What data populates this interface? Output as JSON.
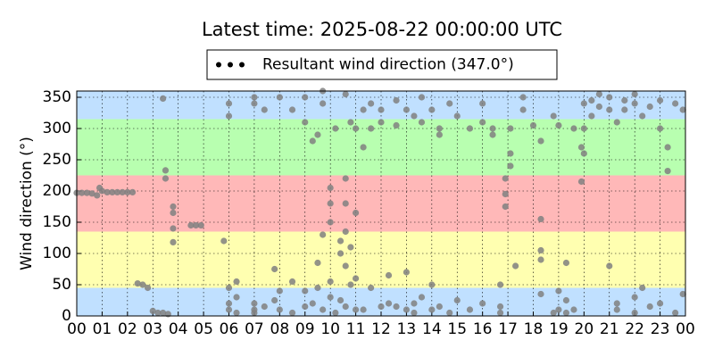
{
  "chart_data": {
    "type": "scatter",
    "title": "Latest time: 2025-08-22 00:00:00 UTC",
    "ylabel": "Wind direction (°)",
    "legend": "upper center",
    "grid": true,
    "xlim": [
      0,
      24
    ],
    "ylim": [
      0,
      360
    ],
    "yticks": [
      0,
      50,
      100,
      150,
      200,
      250,
      300,
      350
    ],
    "xticks": [
      {
        "value": 0,
        "label": "00"
      },
      {
        "value": 1,
        "label": "01"
      },
      {
        "value": 2,
        "label": "02"
      },
      {
        "value": 3,
        "label": "03"
      },
      {
        "value": 4,
        "label": "04"
      },
      {
        "value": 5,
        "label": "05"
      },
      {
        "value": 6,
        "label": "06"
      },
      {
        "value": 7,
        "label": "07"
      },
      {
        "value": 8,
        "label": "08"
      },
      {
        "value": 9,
        "label": "09"
      },
      {
        "value": 10,
        "label": "10"
      },
      {
        "value": 11,
        "label": "11"
      },
      {
        "value": 12,
        "label": "12"
      },
      {
        "value": 13,
        "label": "13"
      },
      {
        "value": 14,
        "label": "14"
      },
      {
        "value": 15,
        "label": "15"
      },
      {
        "value": 16,
        "label": "16"
      },
      {
        "value": 17,
        "label": "17"
      },
      {
        "value": 18,
        "label": "18"
      },
      {
        "value": 19,
        "label": "19"
      },
      {
        "value": 20,
        "label": "20"
      },
      {
        "value": 21,
        "label": "21"
      },
      {
        "value": 22,
        "label": "22"
      },
      {
        "value": 23,
        "label": "23"
      },
      {
        "value": 24,
        "label": "00"
      }
    ],
    "bands": [
      {
        "from": 0,
        "to": 45,
        "color": "#c0e0ff"
      },
      {
        "from": 45,
        "to": 135,
        "color": "#ffffb0"
      },
      {
        "from": 135,
        "to": 225,
        "color": "#ffb8b8"
      },
      {
        "from": 225,
        "to": 315,
        "color": "#b8ffb0"
      },
      {
        "from": 315,
        "to": 360,
        "color": "#c0e0ff"
      }
    ],
    "series": [
      {
        "name": "Resultant wind direction (347.0°)",
        "color": "#808080",
        "x": [
          0,
          0.2,
          0.4,
          0.6,
          0.8,
          0.9,
          1.0,
          1.2,
          1.4,
          1.6,
          1.8,
          2.0,
          2.2,
          2.4,
          2.6,
          2.8,
          3.0,
          3.2,
          3.4,
          3.6,
          3.4,
          3.5,
          3.5,
          3.8,
          3.8,
          3.8,
          3.8,
          4.5,
          4.7,
          4.9,
          5.8,
          6,
          6,
          6,
          6,
          6,
          6.3,
          6.3,
          6.3,
          7,
          7,
          7,
          7,
          7,
          7.4,
          7.4,
          7.8,
          7.8,
          8,
          8,
          8,
          8.5,
          8.5,
          8.5,
          9,
          9,
          9,
          9,
          9.3,
          9.3,
          9.5,
          9.5,
          9.5,
          9.7,
          9.7,
          9.7,
          9.7,
          10,
          10,
          10,
          10,
          10,
          10.2,
          10.2,
          10.4,
          10.4,
          10.4,
          10.6,
          10.6,
          10.6,
          10.6,
          10.6,
          10.6,
          10.8,
          10.8,
          10.8,
          11,
          11,
          11,
          11,
          11.3,
          11.3,
          11.3,
          11.6,
          11.6,
          11.6,
          12,
          12,
          12,
          12.3,
          12.3,
          12.6,
          12.6,
          12.6,
          13,
          13,
          13,
          13.3,
          13.3,
          13.3,
          13.6,
          13.6,
          13.6,
          14,
          14,
          14,
          14.3,
          14.3,
          14.3,
          14.7,
          14.7,
          15,
          15,
          15.5,
          15.5,
          16,
          16,
          16,
          16.4,
          16.4,
          16.7,
          16.7,
          16.7,
          16.9,
          16.9,
          16.9,
          17.1,
          17.1,
          17.1,
          17.3,
          17.6,
          17.6,
          18,
          18.3,
          18.3,
          18.3,
          18.3,
          18.3,
          18.8,
          18.8,
          19,
          19,
          19,
          19.3,
          19.3,
          19.3,
          19.6,
          19.6,
          19.9,
          19.9,
          20,
          20,
          20,
          20.3,
          20.3,
          20.6,
          20.6,
          21,
          21,
          21,
          21.3,
          21.3,
          21.3,
          21.6,
          21.6,
          22,
          22,
          22,
          22,
          22.3,
          22.3,
          22.6,
          22.6,
          23,
          23,
          23,
          23.3,
          23.3,
          23.6,
          23.6,
          23.9,
          23.9
        ],
        "values": [
          197,
          197,
          197,
          196,
          193,
          205,
          200,
          198,
          198,
          198,
          198,
          198,
          198,
          52,
          50,
          45,
          8,
          5,
          5,
          3,
          348,
          233,
          220,
          165,
          175,
          140,
          118,
          145,
          145,
          145,
          120,
          340,
          320,
          10,
          20,
          45,
          55,
          5,
          30,
          340,
          350,
          20,
          10,
          5,
          330,
          15,
          75,
          25,
          350,
          10,
          40,
          330,
          5,
          55,
          310,
          350,
          15,
          40,
          280,
          20,
          290,
          85,
          45,
          360,
          340,
          130,
          10,
          205,
          180,
          150,
          30,
          55,
          300,
          5,
          120,
          100,
          25,
          355,
          220,
          180,
          135,
          80,
          15,
          310,
          110,
          50,
          300,
          165,
          60,
          10,
          270,
          330,
          10,
          340,
          300,
          45,
          310,
          330,
          15,
          65,
          20,
          345,
          305,
          15,
          330,
          70,
          10,
          320,
          20,
          5,
          350,
          310,
          30,
          330,
          50,
          10,
          300,
          290,
          15,
          340,
          5,
          320,
          25,
          300,
          10,
          310,
          340,
          20,
          300,
          290,
          50,
          15,
          5,
          220,
          195,
          175,
          240,
          260,
          300,
          80,
          350,
          330,
          305,
          280,
          155,
          105,
          90,
          35,
          320,
          5,
          305,
          40,
          10,
          85,
          25,
          5,
          300,
          10,
          270,
          215,
          260,
          300,
          340,
          345,
          320,
          335,
          355,
          330,
          350,
          80,
          310,
          20,
          10,
          345,
          330,
          340,
          355,
          30,
          5,
          320,
          45,
          335,
          15,
          345,
          300,
          20,
          270,
          232,
          340,
          5,
          330,
          35
        ]
      }
    ]
  }
}
